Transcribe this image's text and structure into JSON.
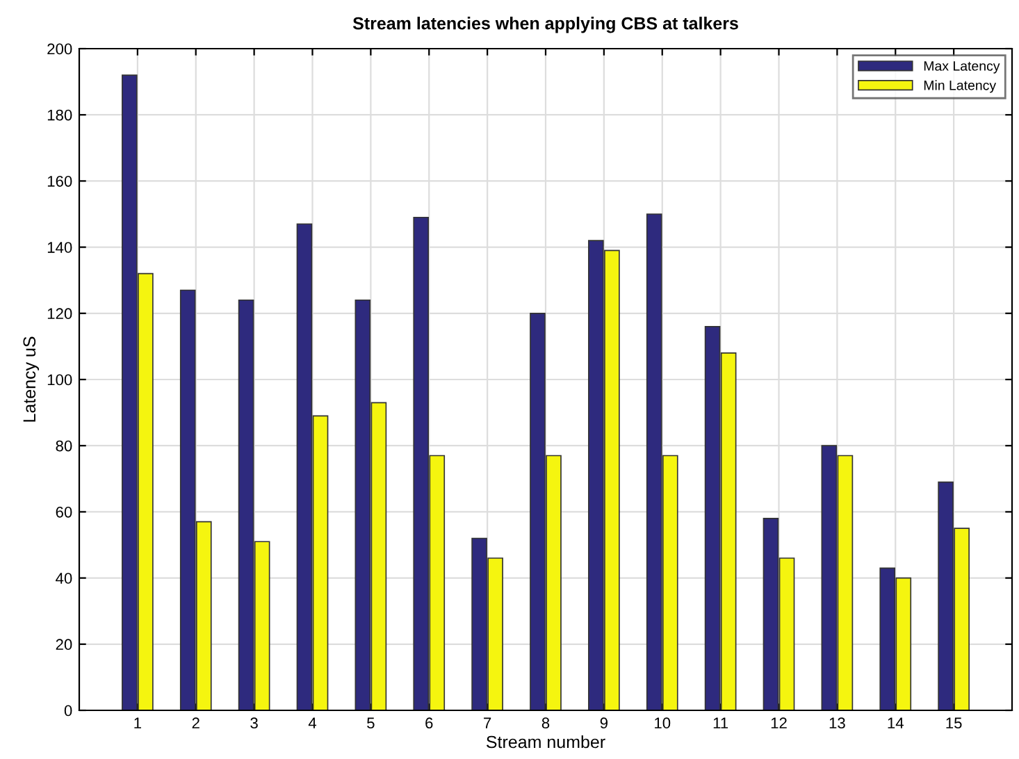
{
  "chart_data": {
    "type": "bar",
    "title": "Stream latencies when applying CBS at talkers",
    "xlabel": "Stream number",
    "ylabel": "Latency uS",
    "x": [
      1,
      2,
      3,
      4,
      5,
      6,
      7,
      8,
      9,
      10,
      11,
      12,
      13,
      14,
      15
    ],
    "series": [
      {
        "name": "Max Latency",
        "color": "#2e2a7e",
        "values": [
          192,
          127,
          124,
          147,
          124,
          149,
          52,
          120,
          142,
          150,
          116,
          58,
          80,
          43,
          69
        ]
      },
      {
        "name": "Min Latency",
        "color": "#f5f50f",
        "values": [
          132,
          57,
          51,
          89,
          93,
          77,
          46,
          77,
          139,
          77,
          108,
          46,
          77,
          40,
          55
        ]
      }
    ],
    "xlim": [
      0,
      16
    ],
    "xticks": [
      1,
      2,
      3,
      4,
      5,
      6,
      7,
      8,
      9,
      10,
      11,
      12,
      13,
      14,
      15
    ],
    "ylim": [
      0,
      200
    ],
    "yticks": [
      0,
      20,
      40,
      60,
      80,
      100,
      120,
      140,
      160,
      180,
      200
    ],
    "grid": true,
    "legend": "top right"
  }
}
